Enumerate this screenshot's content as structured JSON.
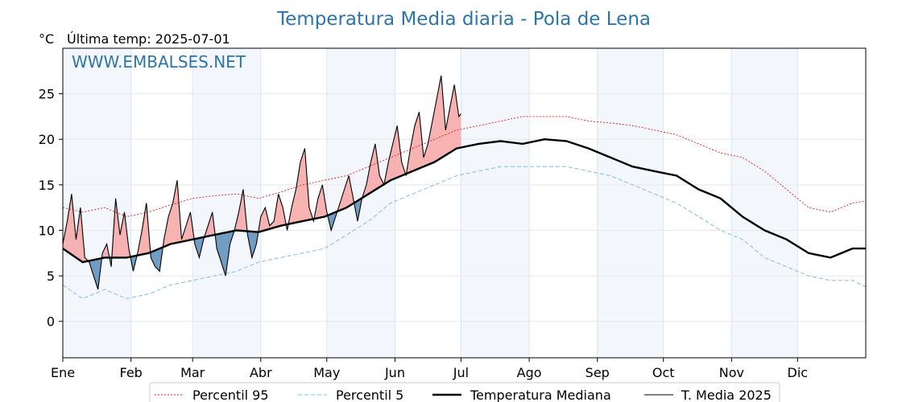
{
  "chart_data": {
    "type": "line",
    "title": "Temperatura Media diaria - Pola de Lena",
    "unit_label": "°C",
    "subtitle": "Última temp: 2025-07-01",
    "watermark": "WWW.EMBALSES.NET",
    "ylim": [
      -4,
      30
    ],
    "yticks": [
      0,
      5,
      10,
      15,
      20,
      25
    ],
    "xlim": [
      1,
      366
    ],
    "month_labels": [
      "Ene",
      "Feb",
      "Mar",
      "Abr",
      "May",
      "Jun",
      "Jul",
      "Ago",
      "Sep",
      "Oct",
      "Nov",
      "Dic"
    ],
    "month_starts": [
      1,
      32,
      60,
      91,
      121,
      152,
      182,
      213,
      244,
      274,
      305,
      335
    ],
    "grid": true,
    "legend_position": "bottom",
    "colors": {
      "p95": "#e41a1c",
      "p5": "#8fc2dc",
      "median": "#000000",
      "current": "#000000",
      "above": "#f6a5a5",
      "below": "#5b8db8",
      "band": "#ddeaf6"
    },
    "series": [
      {
        "name": "Percentil 95",
        "style": "dotted-red",
        "x": [
          1,
          10,
          20,
          30,
          40,
          50,
          60,
          70,
          80,
          90,
          100,
          110,
          120,
          130,
          140,
          150,
          160,
          170,
          180,
          190,
          200,
          210,
          220,
          230,
          240,
          250,
          260,
          270,
          280,
          290,
          300,
          310,
          320,
          330,
          340,
          350,
          360,
          366
        ],
        "values": [
          12.5,
          12.0,
          12.5,
          11.5,
          12.0,
          12.8,
          13.5,
          13.8,
          14.0,
          13.5,
          14.2,
          15.0,
          15.5,
          16.0,
          17.0,
          18.0,
          19.0,
          20.0,
          21.0,
          21.5,
          22.0,
          22.5,
          22.5,
          22.5,
          22.0,
          21.8,
          21.5,
          21.0,
          20.5,
          19.5,
          18.5,
          18.0,
          16.5,
          14.5,
          12.5,
          12.0,
          13.0,
          13.2
        ]
      },
      {
        "name": "Percentil 5",
        "style": "dashed-blue",
        "x": [
          1,
          10,
          20,
          30,
          40,
          50,
          60,
          70,
          80,
          90,
          100,
          110,
          120,
          130,
          140,
          150,
          160,
          170,
          180,
          190,
          200,
          210,
          220,
          230,
          240,
          250,
          260,
          270,
          280,
          290,
          300,
          310,
          320,
          330,
          340,
          350,
          360,
          366
        ],
        "values": [
          4.0,
          2.5,
          3.5,
          2.5,
          3.0,
          4.0,
          4.5,
          5.0,
          5.5,
          6.5,
          7.0,
          7.5,
          8.0,
          9.5,
          11.0,
          13.0,
          14.0,
          15.0,
          16.0,
          16.5,
          17.0,
          17.0,
          17.0,
          17.0,
          16.5,
          16.0,
          15.0,
          14.0,
          13.0,
          11.5,
          10.0,
          9.0,
          7.0,
          6.0,
          5.0,
          4.5,
          4.5,
          3.8
        ]
      },
      {
        "name": "Temperatura Mediana",
        "style": "thick-black",
        "x": [
          1,
          10,
          20,
          30,
          40,
          50,
          60,
          70,
          80,
          90,
          100,
          110,
          120,
          130,
          140,
          150,
          160,
          170,
          180,
          190,
          200,
          210,
          220,
          230,
          240,
          250,
          260,
          270,
          280,
          290,
          300,
          310,
          320,
          330,
          340,
          350,
          360,
          366
        ],
        "values": [
          8.0,
          6.5,
          7.0,
          7.0,
          7.5,
          8.5,
          9.0,
          9.5,
          10.0,
          9.8,
          10.5,
          11.0,
          11.5,
          12.5,
          14.0,
          15.5,
          16.5,
          17.5,
          19.0,
          19.5,
          19.8,
          19.5,
          20.0,
          19.8,
          19.0,
          18.0,
          17.0,
          16.5,
          16.0,
          14.5,
          13.5,
          11.5,
          10.0,
          9.0,
          7.5,
          7.0,
          8.0,
          8.0
        ]
      },
      {
        "name": "T. Media 2025",
        "style": "thin-black",
        "x": [
          1,
          3,
          5,
          7,
          9,
          11,
          13,
          15,
          17,
          19,
          21,
          23,
          25,
          27,
          29,
          31,
          33,
          35,
          37,
          39,
          41,
          43,
          45,
          47,
          49,
          51,
          53,
          55,
          57,
          59,
          61,
          63,
          65,
          67,
          69,
          71,
          73,
          75,
          77,
          79,
          81,
          83,
          85,
          87,
          89,
          91,
          93,
          95,
          97,
          99,
          101,
          103,
          105,
          107,
          109,
          111,
          113,
          115,
          117,
          119,
          121,
          123,
          125,
          127,
          129,
          131,
          133,
          135,
          137,
          139,
          141,
          143,
          145,
          147,
          149,
          151,
          153,
          155,
          157,
          159,
          161,
          163,
          165,
          167,
          169,
          171,
          173,
          175,
          177,
          179,
          181,
          182
        ],
        "values": [
          8.5,
          11.0,
          14.0,
          9.0,
          12.5,
          7.0,
          6.5,
          5.0,
          3.5,
          7.5,
          8.5,
          6.0,
          13.5,
          9.5,
          12.0,
          8.0,
          5.5,
          7.5,
          10.0,
          13.0,
          7.0,
          6.0,
          5.5,
          9.0,
          11.5,
          13.0,
          15.5,
          9.0,
          10.5,
          12.0,
          8.5,
          7.0,
          9.0,
          10.5,
          12.0,
          8.0,
          6.5,
          5.0,
          8.5,
          10.0,
          12.0,
          14.5,
          9.5,
          7.0,
          8.5,
          11.5,
          12.5,
          10.5,
          11.0,
          14.0,
          12.5,
          10.0,
          12.5,
          14.5,
          17.5,
          19.0,
          12.5,
          11.0,
          13.5,
          15.0,
          12.0,
          10.0,
          11.5,
          13.0,
          14.5,
          16.0,
          13.5,
          11.0,
          13.5,
          15.0,
          17.5,
          19.5,
          16.0,
          15.0,
          17.5,
          19.5,
          21.5,
          17.5,
          16.0,
          19.0,
          21.5,
          23.0,
          18.0,
          19.5,
          22.0,
          24.5,
          27.0,
          21.0,
          23.5,
          26.0,
          22.5,
          22.8
        ]
      }
    ]
  }
}
